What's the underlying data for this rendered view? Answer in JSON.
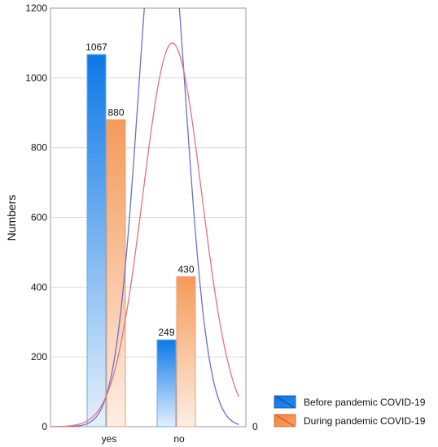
{
  "chart_data": {
    "type": "bar",
    "categories": [
      "yes",
      "no"
    ],
    "series": [
      {
        "name": "Before pandemic COVID-19",
        "values": [
          1067,
          249
        ],
        "color": "#1a7fe6"
      },
      {
        "name": "During pandemic COVID-19",
        "values": [
          880,
          430
        ],
        "color": "#f5904a"
      }
    ],
    "data_labels": [
      "1067",
      "880",
      "249",
      "430"
    ],
    "ylabel": "Numbers",
    "ylim": [
      0,
      1200
    ],
    "y_ticks": [
      0,
      200,
      400,
      600,
      800,
      1000,
      1200
    ],
    "right_axis_tick": "0",
    "grid": true,
    "legend_position": "bottom-right",
    "curves": [
      {
        "series": "Before pandemic COVID-19",
        "color": "#6a6fd0",
        "mean": 0.8,
        "sd": 0.33,
        "peak": 1600
      },
      {
        "series": "During pandemic COVID-19",
        "color": "#e8707a",
        "mean": 0.95,
        "sd": 0.42,
        "peak": 1100
      }
    ]
  }
}
